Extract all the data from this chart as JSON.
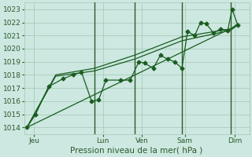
{
  "bg_color": "#cce8e0",
  "grid_color": "#aaccbb",
  "line_color": "#1a5c20",
  "vline_color": "#2d5a2d",
  "tick_color": "#2d5a2d",
  "xlabel": "Pression niveau de la mer( hPa )",
  "ylim": [
    1013.5,
    1023.5
  ],
  "yticks": [
    1014,
    1015,
    1016,
    1017,
    1018,
    1019,
    1020,
    1021,
    1022,
    1023
  ],
  "xlim": [
    -0.2,
    15.5
  ],
  "xtick_labels": [
    "Jeu",
    "Lun",
    "Ven",
    "Sam",
    "Dim"
  ],
  "xtick_positions": [
    0.5,
    5.3,
    8.0,
    11.0,
    14.5
  ],
  "vlines": [
    4.7,
    7.5,
    10.8,
    14.2
  ],
  "series1_x": [
    0,
    0.6,
    1.5,
    2.5,
    3.2,
    3.8,
    4.5,
    5.0,
    5.5,
    6.5,
    7.2,
    7.8,
    8.2,
    8.8,
    9.3,
    9.8,
    10.3,
    10.8,
    11.2,
    11.7,
    12.1,
    12.5,
    13.0,
    13.5,
    14.0,
    14.3,
    14.7
  ],
  "series1_y": [
    1014.0,
    1015.0,
    1017.1,
    1017.7,
    1018.0,
    1018.2,
    1016.0,
    1016.1,
    1017.6,
    1017.6,
    1017.6,
    1019.0,
    1018.9,
    1018.5,
    1019.5,
    1019.2,
    1019.0,
    1018.5,
    1021.3,
    1021.0,
    1022.0,
    1021.9,
    1021.2,
    1021.5,
    1021.4,
    1023.0,
    1021.8
  ],
  "series2_x": [
    0,
    2.0,
    4.7,
    7.5,
    10.8,
    14.2,
    14.7
  ],
  "series2_y": [
    1014.0,
    1017.9,
    1018.3,
    1019.2,
    1020.6,
    1021.4,
    1021.8
  ],
  "series3_x": [
    0,
    2.0,
    4.7,
    7.5,
    10.8,
    14.2,
    14.7
  ],
  "series3_y": [
    1014.0,
    1018.0,
    1018.5,
    1019.5,
    1020.9,
    1021.5,
    1021.9
  ],
  "series4_x": [
    0,
    14.7
  ],
  "series4_y": [
    1014.0,
    1021.8
  ]
}
